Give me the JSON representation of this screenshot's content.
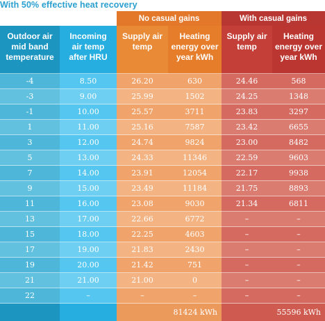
{
  "caption": "With 50% effective heat recovery",
  "groups": {
    "no_casual": "No casual gains",
    "with_casual": "With casual gains"
  },
  "columns": [
    [
      "Outdoor air",
      "mid band",
      "temperature"
    ],
    [
      "Incoming",
      "air temp",
      "after HRU"
    ],
    [
      "Supply air",
      "temp"
    ],
    [
      "Heating",
      "energy over",
      "year kWh"
    ],
    [
      "Supply air",
      "temp"
    ],
    [
      "Heating",
      "energy over",
      "year kWh"
    ]
  ],
  "rows": [
    [
      "-4",
      "8.50",
      "26.20",
      "630",
      "24.46",
      "568"
    ],
    [
      "-3",
      "9.00",
      "25.99",
      "1502",
      "24.25",
      "1348"
    ],
    [
      "-1",
      "10.00",
      "25.57",
      "3711",
      "23.83",
      "3297"
    ],
    [
      "1",
      "11.00",
      "25.16",
      "7587",
      "23.42",
      "6655"
    ],
    [
      "3",
      "12.00",
      "24.74",
      "9824",
      "23.00",
      "8482"
    ],
    [
      "5",
      "13.00",
      "24.33",
      "11346",
      "22.59",
      "9603"
    ],
    [
      "7",
      "14.00",
      "23.91",
      "12054",
      "22.17",
      "9938"
    ],
    [
      "9",
      "15.00",
      "23.49",
      "11184",
      "21.75",
      "8893"
    ],
    [
      "11",
      "16.00",
      "23.08",
      "9030",
      "21.34",
      "6811"
    ],
    [
      "13",
      "17.00",
      "22.66",
      "6772",
      "–",
      "–"
    ],
    [
      "15",
      "18.00",
      "22.25",
      "4603",
      "–",
      "–"
    ],
    [
      "17",
      "19.00",
      "21.83",
      "2430",
      "–",
      "–"
    ],
    [
      "19",
      "20.00",
      "21.42",
      "751",
      "–",
      "–"
    ],
    [
      "21",
      "21.00",
      "21.00",
      "0",
      "–",
      "–"
    ],
    [
      "22",
      "–",
      "–",
      "–",
      "–",
      "–"
    ]
  ],
  "totals": {
    "no_casual": "81424 kWh",
    "with_casual": "55596 kWh"
  }
}
